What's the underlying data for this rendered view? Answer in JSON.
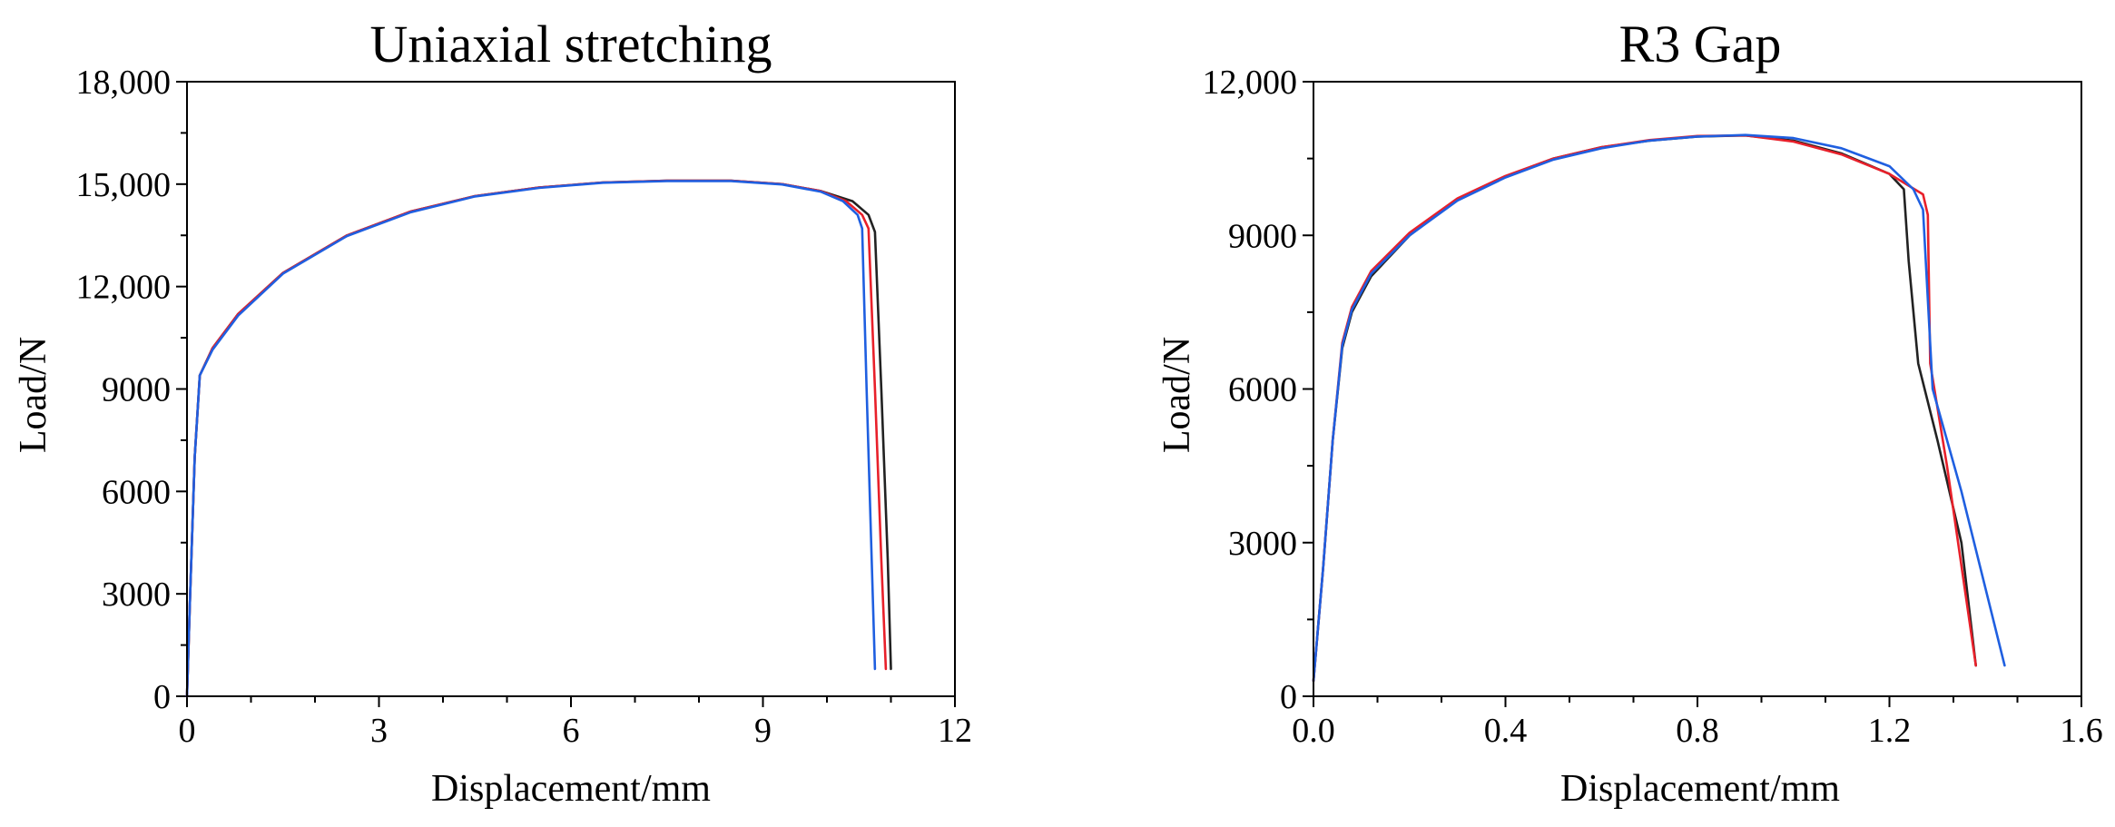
{
  "chart_data": [
    {
      "type": "line",
      "title": "Uniaxial stretching",
      "xlabel": "Displacement/mm",
      "ylabel": "Load/N",
      "xlim": [
        0,
        12
      ],
      "ylim": [
        0,
        18000
      ],
      "xticks": [
        0,
        3,
        6,
        9,
        12
      ],
      "xtick_labels": [
        "0",
        "3",
        "6",
        "9",
        "12"
      ],
      "yticks": [
        0,
        3000,
        6000,
        9000,
        12000,
        15000,
        18000
      ],
      "ytick_labels": [
        "0",
        "3000",
        "6000",
        "9000",
        "12,000",
        "15,000",
        "18,000"
      ],
      "grid": false,
      "series": [
        {
          "name": "black",
          "color": "#222222",
          "points": [
            [
              0,
              0
            ],
            [
              0.05,
              3000
            ],
            [
              0.12,
              7000
            ],
            [
              0.2,
              9400
            ],
            [
              0.4,
              10200
            ],
            [
              0.8,
              11200
            ],
            [
              1.5,
              12400
            ],
            [
              2.5,
              13500
            ],
            [
              3.5,
              14200
            ],
            [
              4.5,
              14650
            ],
            [
              5.5,
              14900
            ],
            [
              6.5,
              15050
            ],
            [
              7.5,
              15100
            ],
            [
              8.5,
              15100
            ],
            [
              9.3,
              15000
            ],
            [
              9.9,
              14800
            ],
            [
              10.4,
              14500
            ],
            [
              10.65,
              14100
            ],
            [
              10.75,
              13600
            ],
            [
              10.85,
              9000
            ],
            [
              10.95,
              4000
            ],
            [
              11.0,
              800
            ]
          ]
        },
        {
          "name": "red",
          "color": "#e8202a",
          "points": [
            [
              0,
              0
            ],
            [
              0.05,
              3000
            ],
            [
              0.12,
              7000
            ],
            [
              0.2,
              9400
            ],
            [
              0.4,
              10200
            ],
            [
              0.8,
              11200
            ],
            [
              1.5,
              12400
            ],
            [
              2.5,
              13500
            ],
            [
              3.5,
              14200
            ],
            [
              4.5,
              14650
            ],
            [
              5.5,
              14900
            ],
            [
              6.5,
              15050
            ],
            [
              7.5,
              15100
            ],
            [
              8.5,
              15100
            ],
            [
              9.3,
              15000
            ],
            [
              9.9,
              14800
            ],
            [
              10.3,
              14500
            ],
            [
              10.55,
              14100
            ],
            [
              10.65,
              13700
            ],
            [
              10.75,
              9000
            ],
            [
              10.85,
              4000
            ],
            [
              10.92,
              800
            ]
          ]
        },
        {
          "name": "blue",
          "color": "#1f5fe0",
          "points": [
            [
              0,
              0
            ],
            [
              0.05,
              3000
            ],
            [
              0.12,
              7000
            ],
            [
              0.2,
              9400
            ],
            [
              0.4,
              10150
            ],
            [
              0.8,
              11150
            ],
            [
              1.5,
              12380
            ],
            [
              2.5,
              13480
            ],
            [
              3.5,
              14180
            ],
            [
              4.5,
              14640
            ],
            [
              5.5,
              14890
            ],
            [
              6.5,
              15040
            ],
            [
              7.5,
              15090
            ],
            [
              8.5,
              15090
            ],
            [
              9.3,
              14990
            ],
            [
              9.9,
              14780
            ],
            [
              10.25,
              14500
            ],
            [
              10.48,
              14100
            ],
            [
              10.55,
              13700
            ],
            [
              10.62,
              9000
            ],
            [
              10.7,
              4000
            ],
            [
              10.75,
              800
            ]
          ]
        }
      ]
    },
    {
      "type": "line",
      "title": "R3 Gap",
      "xlabel": "Displacement/mm",
      "ylabel": "Load/N",
      "xlim": [
        0,
        1.6
      ],
      "ylim": [
        0,
        12000
      ],
      "xticks": [
        0,
        0.4,
        0.8,
        1.2,
        1.6
      ],
      "xtick_labels": [
        "0.0",
        "0.4",
        "0.8",
        "1.2",
        "1.6"
      ],
      "yticks": [
        0,
        3000,
        6000,
        9000,
        12000
      ],
      "ytick_labels": [
        "0",
        "3000",
        "6000",
        "9000",
        "12,000"
      ],
      "grid": false,
      "series": [
        {
          "name": "black",
          "color": "#222222",
          "points": [
            [
              0,
              300
            ],
            [
              0.02,
              2500
            ],
            [
              0.04,
              5000
            ],
            [
              0.06,
              6800
            ],
            [
              0.08,
              7500
            ],
            [
              0.12,
              8200
            ],
            [
              0.2,
              9000
            ],
            [
              0.3,
              9700
            ],
            [
              0.4,
              10150
            ],
            [
              0.5,
              10500
            ],
            [
              0.6,
              10720
            ],
            [
              0.7,
              10850
            ],
            [
              0.8,
              10930
            ],
            [
              0.9,
              10950
            ],
            [
              1.0,
              10850
            ],
            [
              1.1,
              10600
            ],
            [
              1.2,
              10200
            ],
            [
              1.23,
              9900
            ],
            [
              1.24,
              8500
            ],
            [
              1.26,
              6500
            ],
            [
              1.3,
              5000
            ],
            [
              1.35,
              3000
            ],
            [
              1.38,
              600
            ]
          ]
        },
        {
          "name": "red",
          "color": "#e8202a",
          "points": [
            [
              0,
              300
            ],
            [
              0.02,
              2500
            ],
            [
              0.04,
              5000
            ],
            [
              0.06,
              6900
            ],
            [
              0.08,
              7600
            ],
            [
              0.12,
              8300
            ],
            [
              0.2,
              9050
            ],
            [
              0.3,
              9720
            ],
            [
              0.4,
              10160
            ],
            [
              0.5,
              10500
            ],
            [
              0.6,
              10720
            ],
            [
              0.7,
              10860
            ],
            [
              0.8,
              10940
            ],
            [
              0.9,
              10950
            ],
            [
              1.0,
              10830
            ],
            [
              1.1,
              10580
            ],
            [
              1.2,
              10200
            ],
            [
              1.27,
              9800
            ],
            [
              1.28,
              9400
            ],
            [
              1.285,
              6500
            ],
            [
              1.32,
              4500
            ],
            [
              1.38,
              600
            ]
          ]
        },
        {
          "name": "blue",
          "color": "#1f5fe0",
          "points": [
            [
              0,
              300
            ],
            [
              0.02,
              2500
            ],
            [
              0.04,
              5000
            ],
            [
              0.06,
              6850
            ],
            [
              0.08,
              7550
            ],
            [
              0.12,
              8250
            ],
            [
              0.2,
              9000
            ],
            [
              0.3,
              9680
            ],
            [
              0.4,
              10130
            ],
            [
              0.5,
              10480
            ],
            [
              0.6,
              10700
            ],
            [
              0.7,
              10850
            ],
            [
              0.8,
              10930
            ],
            [
              0.9,
              10960
            ],
            [
              1.0,
              10900
            ],
            [
              1.1,
              10700
            ],
            [
              1.2,
              10350
            ],
            [
              1.25,
              9900
            ],
            [
              1.27,
              9500
            ],
            [
              1.29,
              6000
            ],
            [
              1.35,
              4000
            ],
            [
              1.44,
              600
            ]
          ]
        }
      ]
    }
  ]
}
